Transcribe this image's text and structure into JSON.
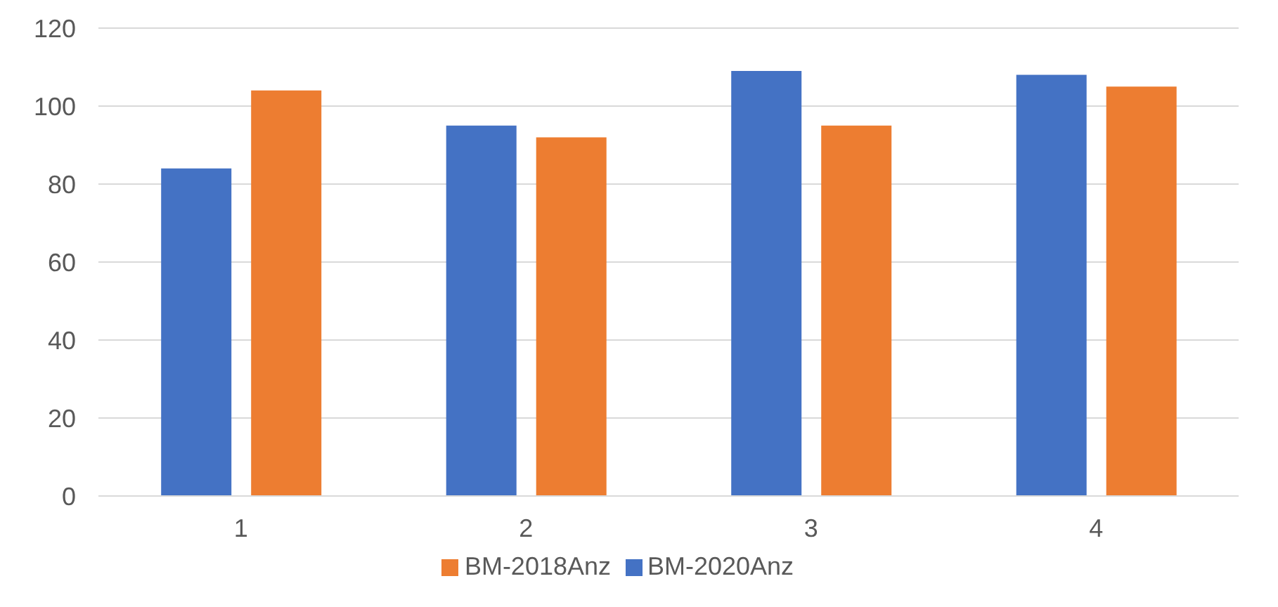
{
  "chart_data": {
    "type": "bar",
    "categories": [
      "1",
      "2",
      "3",
      "4"
    ],
    "series": [
      {
        "name": "BM-2020Anz",
        "color": "#4472c4",
        "values": [
          84,
          95,
          109,
          108
        ]
      },
      {
        "name": "BM-2018Anz",
        "color": "#ed7d31",
        "values": [
          104,
          92,
          95,
          105
        ]
      }
    ],
    "ylim": [
      0,
      120
    ],
    "yticks": [
      0,
      20,
      40,
      60,
      80,
      100,
      120
    ],
    "grid": "y",
    "legend": "bottom"
  }
}
